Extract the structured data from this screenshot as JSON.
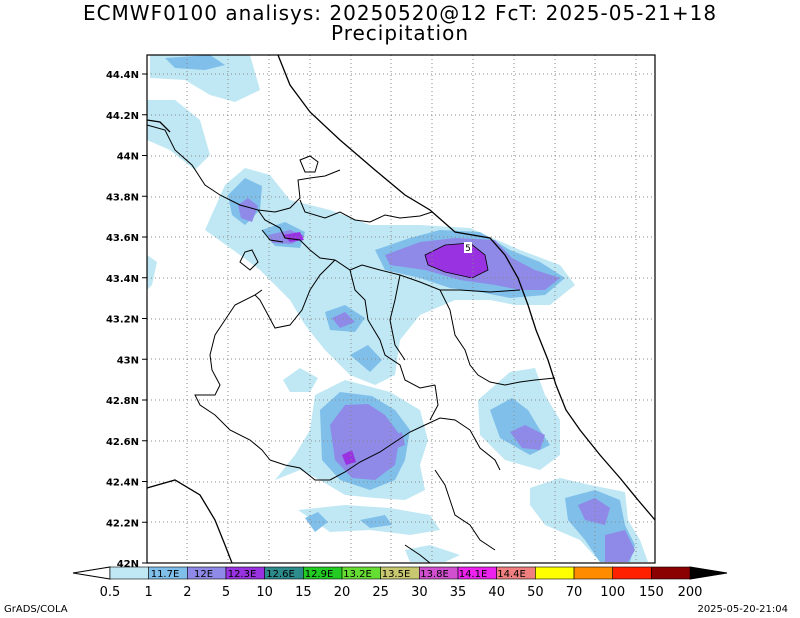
{
  "title": {
    "line1": "ECMWF0100 analisys: 20250520@12 FcT: 2025-05-21+18",
    "line2": "Precipitation"
  },
  "map": {
    "lat_ticks": [
      "44.4N",
      "44.2N",
      "44N",
      "43.8N",
      "43.6N",
      "43.4N",
      "43.2N",
      "43N",
      "42.8N",
      "42.6N",
      "42.4N",
      "42.2N",
      "42N"
    ],
    "contour_label": "5"
  },
  "colorbar": {
    "ticks": [
      "0.5",
      "1",
      "2",
      "5",
      "10",
      "15",
      "20",
      "25",
      "30",
      "35",
      "40",
      "50",
      "70",
      "100",
      "150",
      "200"
    ],
    "colors": [
      "#bfe8f4",
      "#7fbfea",
      "#8f8ae8",
      "#9932e0",
      "#2e8b8b",
      "#22cc22",
      "#66dd33",
      "#c8c870",
      "#d050d0",
      "#ee22ee",
      "#f08080",
      "#ffff00",
      "#ff8c00",
      "#ff2000",
      "#8b0000"
    ],
    "inner_labels": [
      "11.7E",
      "12E",
      "12.3E",
      "12.6E",
      "12.9E",
      "13.2E",
      "13.5E",
      "13.8E",
      "14.1E",
      "14.4E"
    ]
  },
  "footer": {
    "left": "GrADS/COLA",
    "right": "2025-05-20-21:04"
  }
}
